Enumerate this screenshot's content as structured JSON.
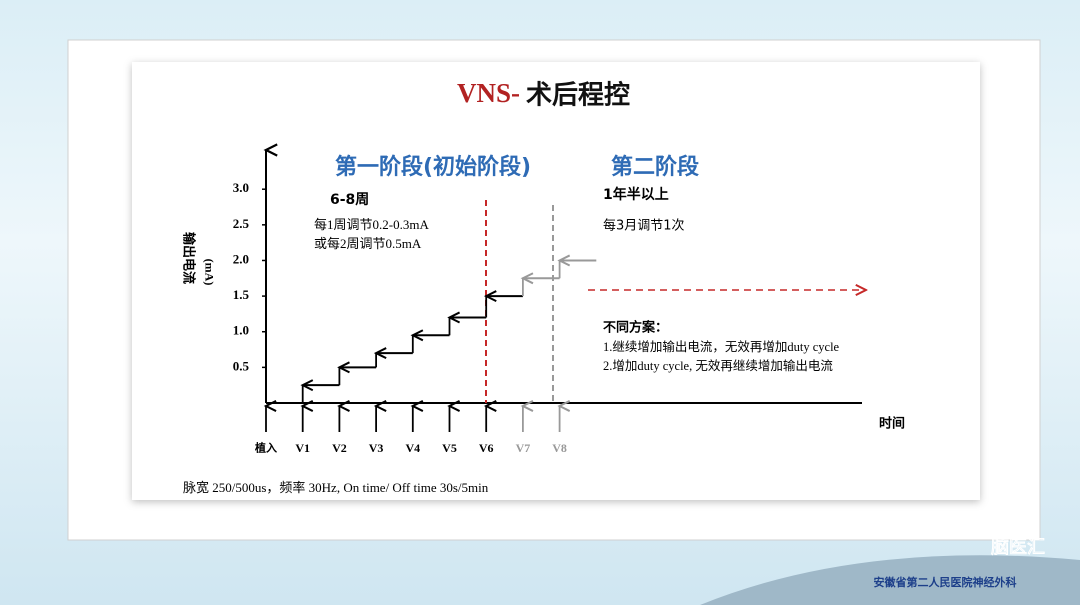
{
  "chart_data": {
    "type": "step",
    "title_prefix": "VNS-",
    "title": "术后程控",
    "y_label": "输出电流",
    "y_unit": "(mA)",
    "x_label": "时间",
    "categories": [
      "植入",
      "V1",
      "V2",
      "V3",
      "V4",
      "V5",
      "V6",
      "V7",
      "V8"
    ],
    "values": [
      null,
      0.25,
      0.5,
      0.7,
      0.95,
      1.2,
      1.5,
      1.75,
      2.0
    ],
    "colors": [
      "#000000",
      "#000000",
      "#000000",
      "#000000",
      "#000000",
      "#000000",
      "#000000",
      "#999999",
      "#999999"
    ],
    "ylim": [
      0,
      3.55
    ],
    "yticks": [
      {
        "value": 3,
        "label": "3.0"
      },
      2.5,
      {
        "value": 2,
        "label": "2.0"
      },
      1.5,
      {
        "value": 1,
        "label": "1.0"
      },
      0.5
    ],
    "phase1": {
      "title": "第一阶段(初始阶段)",
      "duration": "6-8周",
      "notes": [
        "每1周调节0.2-0.3mA",
        "或每2周调节0.5mA"
      ]
    },
    "phase2": {
      "title": "第二阶段",
      "duration": "1年半以上",
      "notes": [
        "每3月调节1次"
      ]
    },
    "options": {
      "title": "不同方案：",
      "items": [
        "1.继续增加输出电流，无效再增加duty cycle",
        "2.增加duty cycle, 无效再继续增加输出电流"
      ]
    },
    "footnote": "脉宽 250/500us，频率 30Hz,  On time/ Off time 30s/5min"
  },
  "footer": {
    "logo": "脑医汇",
    "org": "安徽省第二人民医院神经外科"
  }
}
